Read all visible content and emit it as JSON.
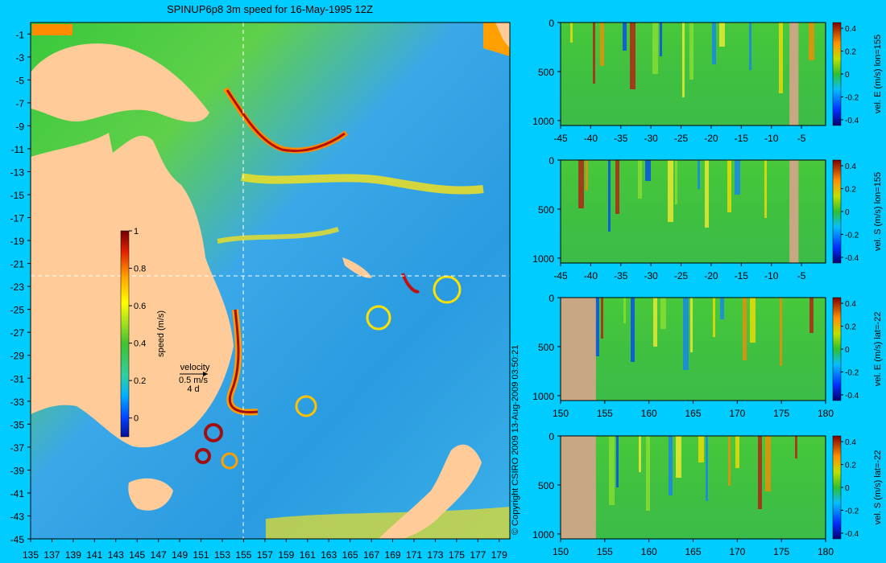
{
  "title": "SPINUP6p8 3m speed for 16-May-1995 12Z",
  "copyright": "© Copyright CSIRO 2009   13-Aug-2009 03:50:21",
  "colors": {
    "background": "#00ccff",
    "land": "#ffcc99",
    "section_land": "#c8a882",
    "section_line": "#ffffff"
  },
  "chart_data": [
    {
      "type": "heatmap",
      "title": "SPINUP6p8 3m speed for 16-May-1995 12Z",
      "x_ticks": [
        "135",
        "137",
        "139",
        "141",
        "143",
        "145",
        "147",
        "149",
        "151",
        "153",
        "155",
        "157",
        "159",
        "161",
        "163",
        "165",
        "167",
        "169",
        "171",
        "173",
        "175",
        "177",
        "179"
      ],
      "y_ticks": [
        "-1",
        "-3",
        "-5",
        "-7",
        "-9",
        "-11",
        "-13",
        "-15",
        "-17",
        "-19",
        "-21",
        "-23",
        "-25",
        "-27",
        "-29",
        "-31",
        "-33",
        "-35",
        "-37",
        "-39",
        "-41",
        "-43",
        "-45"
      ],
      "xlim": [
        135,
        180
      ],
      "ylim": [
        -45,
        0
      ],
      "section_lines": {
        "lon": 155,
        "lat": -22
      },
      "colorbar": {
        "label": "speed (m/s)",
        "ticks": [
          "1",
          "0.8",
          "0.6",
          "0.4",
          "0.2",
          "0"
        ],
        "range": [
          -0.1,
          1
        ]
      },
      "velocity_legend": {
        "label": "velocity",
        "speed": "0.5 m/s",
        "time": "4 d"
      }
    },
    {
      "type": "heatmap",
      "ylabel": "vel. E (m/s) lon=155",
      "x_ticks": [
        "-45",
        "-40",
        "-35",
        "-30",
        "-25",
        "-20",
        "-15",
        "-10",
        "-5"
      ],
      "y_ticks": [
        "0",
        "500",
        "1000"
      ],
      "xlim": [
        -45,
        -1
      ],
      "ylim": [
        1050,
        0
      ],
      "colorbar_ticks": [
        "0.4",
        "0.2",
        "0",
        "-0.2",
        "-0.4"
      ],
      "land_x": [
        [
          -7,
          -5.5
        ]
      ]
    },
    {
      "type": "heatmap",
      "ylabel": "vel. S (m/s) lon=155",
      "x_ticks": [
        "-45",
        "-40",
        "-35",
        "-30",
        "-25",
        "-20",
        "-15",
        "-10",
        "-5"
      ],
      "y_ticks": [
        "0",
        "500",
        "1000"
      ],
      "xlim": [
        -45,
        -1
      ],
      "ylim": [
        1050,
        0
      ],
      "colorbar_ticks": [
        "0.4",
        "0.2",
        "0",
        "-0.2",
        "-0.4"
      ],
      "land_x": [
        [
          -7,
          -5.5
        ]
      ]
    },
    {
      "type": "heatmap",
      "ylabel": "vel. E (m/s) lat=-22",
      "x_ticks": [
        "150",
        "155",
        "160",
        "165",
        "170",
        "175",
        "180"
      ],
      "y_ticks": [
        "0",
        "500",
        "1000"
      ],
      "xlim": [
        150,
        180
      ],
      "ylim": [
        1050,
        0
      ],
      "colorbar_ticks": [
        "0.4",
        "0.2",
        "0",
        "-0.2",
        "-0.4"
      ],
      "land_x": [
        [
          150,
          154
        ]
      ]
    },
    {
      "type": "heatmap",
      "ylabel": "vel. S (m/s) lat=-22",
      "x_ticks": [
        "150",
        "155",
        "160",
        "165",
        "170",
        "175",
        "180"
      ],
      "y_ticks": [
        "0",
        "500",
        "1000"
      ],
      "xlim": [
        150,
        180
      ],
      "ylim": [
        1050,
        0
      ],
      "colorbar_ticks": [
        "0.4",
        "0.2",
        "0",
        "-0.2",
        "-0.4"
      ],
      "land_x": [
        [
          150,
          154
        ]
      ]
    }
  ]
}
